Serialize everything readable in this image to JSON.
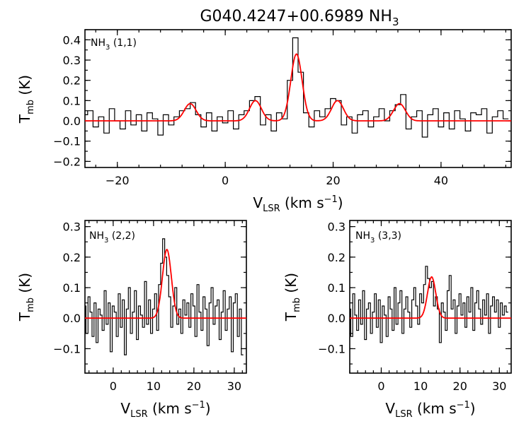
{
  "title": {
    "main": "G040.4247+00.6989 NH",
    "sub": "3"
  },
  "axis_text": {
    "y_main": "T",
    "y_sub": "mb",
    "y_unit": " (K)",
    "x_main": "V",
    "x_sub": "LSR",
    "x_unit": " (km s",
    "x_sup": "−1",
    "x_close": ")"
  },
  "colors": {
    "spectrum": "#000000",
    "fit": "#ff0000"
  },
  "chart_data": [
    {
      "type": "line",
      "panel_label": {
        "main": "NH",
        "sub": "3",
        "rest": " (1,1)"
      },
      "xlim": [
        -26,
        53
      ],
      "ylim": [
        -0.23,
        0.45
      ],
      "xticks": [
        -20,
        0,
        20,
        40
      ],
      "yticks": [
        -0.2,
        -0.1,
        0.0,
        0.1,
        0.2,
        0.3,
        0.4
      ],
      "ytick_labels": [
        "−0.2",
        "−0.1",
        "0.0",
        "0.1",
        "0.2",
        "0.3",
        "0.4"
      ],
      "xtick_labels": [
        "−20",
        "0",
        "20",
        "40"
      ],
      "series": [
        {
          "x": [
            -26,
            -25,
            -24,
            -23,
            -22,
            -21,
            -20,
            -19,
            -18,
            -17,
            -16,
            -15,
            -14,
            -13,
            -12,
            -11,
            -10,
            -9,
            -8,
            -7,
            -6,
            -5,
            -4,
            -3,
            -2,
            -1,
            0,
            1,
            2,
            3,
            4,
            5,
            6,
            7,
            8,
            9,
            10,
            11,
            12,
            13,
            14,
            15,
            16,
            17,
            18,
            19,
            20,
            21,
            22,
            23,
            24,
            25,
            26,
            27,
            28,
            29,
            30,
            31,
            32,
            33,
            34,
            35,
            36,
            37,
            38,
            39,
            40,
            41,
            42,
            43,
            44,
            45,
            46,
            47,
            48,
            49,
            50,
            51,
            52
          ],
          "values": [
            0.03,
            0.05,
            -0.03,
            0.02,
            -0.06,
            0.06,
            0.0,
            -0.04,
            0.05,
            -0.02,
            0.03,
            -0.05,
            0.04,
            0.01,
            -0.07,
            0.03,
            -0.02,
            0.02,
            0.05,
            0.06,
            0.09,
            0.03,
            -0.03,
            0.04,
            -0.05,
            0.02,
            -0.01,
            0.05,
            -0.04,
            0.03,
            0.05,
            0.1,
            0.12,
            -0.02,
            0.03,
            -0.05,
            0.04,
            0.01,
            0.2,
            0.41,
            0.24,
            0.04,
            -0.03,
            0.05,
            0.02,
            0.06,
            0.11,
            0.1,
            -0.02,
            0.02,
            -0.06,
            0.03,
            0.05,
            -0.03,
            0.02,
            0.06,
            0.0,
            0.05,
            0.08,
            0.13,
            -0.04,
            0.02,
            0.05,
            -0.08,
            0.03,
            0.06,
            -0.03,
            0.04,
            -0.04,
            0.05,
            0.01,
            -0.05,
            0.04,
            0.03,
            0.06,
            -0.06,
            0.02,
            0.05,
            0.01
          ]
        },
        {
          "fit_components": [
            {
              "center": -6.5,
              "amp": 0.085,
              "sigma": 1.1
            },
            {
              "center": 5.6,
              "amp": 0.1,
              "sigma": 1.1
            },
            {
              "center": 13.2,
              "amp": 0.33,
              "sigma": 1.05
            },
            {
              "center": 20.8,
              "amp": 0.1,
              "sigma": 1.1
            },
            {
              "center": 32.3,
              "amp": 0.085,
              "sigma": 1.1
            }
          ]
        }
      ]
    },
    {
      "type": "line",
      "panel_label": {
        "main": "NH",
        "sub": "3",
        "rest": " (2,2)"
      },
      "xlim": [
        -7,
        33
      ],
      "ylim": [
        -0.18,
        0.32
      ],
      "xticks": [
        0,
        10,
        20,
        30
      ],
      "yticks": [
        -0.1,
        0.0,
        0.1,
        0.2,
        0.3
      ],
      "ytick_labels": [
        "−0.1",
        "0.0",
        "0.1",
        "0.2",
        "0.3"
      ],
      "xtick_labels": [
        "0",
        "10",
        "20",
        "30"
      ],
      "series": [
        {
          "x": [
            -7,
            -6.5,
            -6,
            -5.5,
            -5,
            -4.5,
            -4,
            -3.5,
            -3,
            -2.5,
            -2,
            -1.5,
            -1,
            -0.5,
            0,
            0.5,
            1,
            1.5,
            2,
            2.5,
            3,
            3.5,
            4,
            4.5,
            5,
            5.5,
            6,
            6.5,
            7,
            7.5,
            8,
            8.5,
            9,
            9.5,
            10,
            10.5,
            11,
            11.5,
            12,
            12.5,
            13,
            13.5,
            14,
            14.5,
            15,
            15.5,
            16,
            16.5,
            17,
            17.5,
            18,
            18.5,
            19,
            19.5,
            20,
            20.5,
            21,
            21.5,
            22,
            22.5,
            23,
            23.5,
            24,
            24.5,
            25,
            25.5,
            26,
            26.5,
            27,
            27.5,
            28,
            28.5,
            29,
            29.5,
            30,
            30.5,
            31,
            31.5,
            32
          ],
          "values": [
            0.04,
            -0.05,
            0.07,
            0.02,
            -0.06,
            0.05,
            -0.08,
            0.03,
            0.01,
            -0.04,
            0.09,
            -0.02,
            0.05,
            -0.11,
            0.04,
            0.02,
            -0.06,
            0.08,
            -0.03,
            0.06,
            -0.12,
            0.03,
            0.1,
            -0.05,
            0.02,
            0.09,
            -0.07,
            0.04,
            0.01,
            -0.03,
            0.12,
            -0.02,
            0.06,
            -0.05,
            0.03,
            0.08,
            -0.04,
            0.11,
            0.18,
            0.26,
            0.2,
            0.14,
            0.07,
            -0.03,
            0.04,
            0.1,
            -0.02,
            0.03,
            -0.05,
            0.06,
            0.01,
            0.05,
            -0.03,
            0.08,
            0.04,
            -0.06,
            0.11,
            0.02,
            -0.04,
            0.07,
            0.03,
            -0.09,
            0.05,
            0.1,
            -0.02,
            0.04,
            0.06,
            -0.07,
            0.02,
            0.09,
            -0.04,
            0.03,
            0.07,
            -0.11,
            0.05,
            0.08,
            -0.06,
            0.03,
            -0.12
          ]
        },
        {
          "fit_components": [
            {
              "center": 13.3,
              "amp": 0.225,
              "sigma": 1.1
            }
          ]
        }
      ]
    },
    {
      "type": "line",
      "panel_label": {
        "main": "NH",
        "sub": "3",
        "rest": " (3,3)"
      },
      "xlim": [
        -8,
        33
      ],
      "ylim": [
        -0.18,
        0.32
      ],
      "xticks": [
        0,
        10,
        20,
        30
      ],
      "yticks": [
        -0.1,
        0.0,
        0.1,
        0.2,
        0.3
      ],
      "ytick_labels": [
        "−0.1",
        "0.0",
        "0.1",
        "0.2",
        "0.3"
      ],
      "xtick_labels": [
        "0",
        "10",
        "20",
        "30"
      ],
      "series": [
        {
          "x": [
            -8,
            -7.5,
            -7,
            -6.5,
            -6,
            -5.5,
            -5,
            -4.5,
            -4,
            -3.5,
            -3,
            -2.5,
            -2,
            -1.5,
            -1,
            -0.5,
            0,
            0.5,
            1,
            1.5,
            2,
            2.5,
            3,
            3.5,
            4,
            4.5,
            5,
            5.5,
            6,
            6.5,
            7,
            7.5,
            8,
            8.5,
            9,
            9.5,
            10,
            10.5,
            11,
            11.5,
            12,
            12.5,
            13,
            13.5,
            14,
            14.5,
            15,
            15.5,
            16,
            16.5,
            17,
            17.5,
            18,
            18.5,
            19,
            19.5,
            20,
            20.5,
            21,
            21.5,
            22,
            22.5,
            23,
            23.5,
            24,
            24.5,
            25,
            25.5,
            26,
            26.5,
            27,
            27.5,
            28,
            28.5,
            29,
            29.5,
            30,
            30.5,
            31,
            31.5,
            32
          ],
          "values": [
            0.03,
            -0.06,
            0.08,
            0.01,
            -0.04,
            0.06,
            -0.02,
            0.09,
            -0.07,
            0.03,
            0.05,
            -0.05,
            0.02,
            0.08,
            -0.03,
            0.06,
            -0.08,
            0.04,
            0.01,
            -0.06,
            0.07,
            0.03,
            -0.04,
            0.1,
            -0.02,
            0.05,
            0.09,
            -0.05,
            0.03,
            0.07,
            0.02,
            -0.03,
            0.06,
            0.1,
            0.04,
            -0.02,
            0.08,
            0.05,
            0.11,
            0.17,
            0.13,
            0.1,
            0.12,
            0.04,
            0.07,
            0.03,
            -0.08,
            0.05,
            0.02,
            -0.04,
            0.09,
            0.14,
            0.03,
            0.06,
            -0.05,
            0.04,
            0.08,
            0.01,
            0.05,
            -0.03,
            0.07,
            0.02,
            0.1,
            -0.04,
            0.05,
            0.09,
            0.03,
            -0.02,
            0.06,
            0.01,
            0.08,
            -0.05,
            0.04,
            0.07,
            0.02,
            0.06,
            -0.03,
            0.05,
            0.01,
            0.04,
            0.02
          ]
        },
        {
          "fit_components": [
            {
              "center": 12.8,
              "amp": 0.135,
              "sigma": 1.05
            }
          ]
        }
      ]
    }
  ]
}
